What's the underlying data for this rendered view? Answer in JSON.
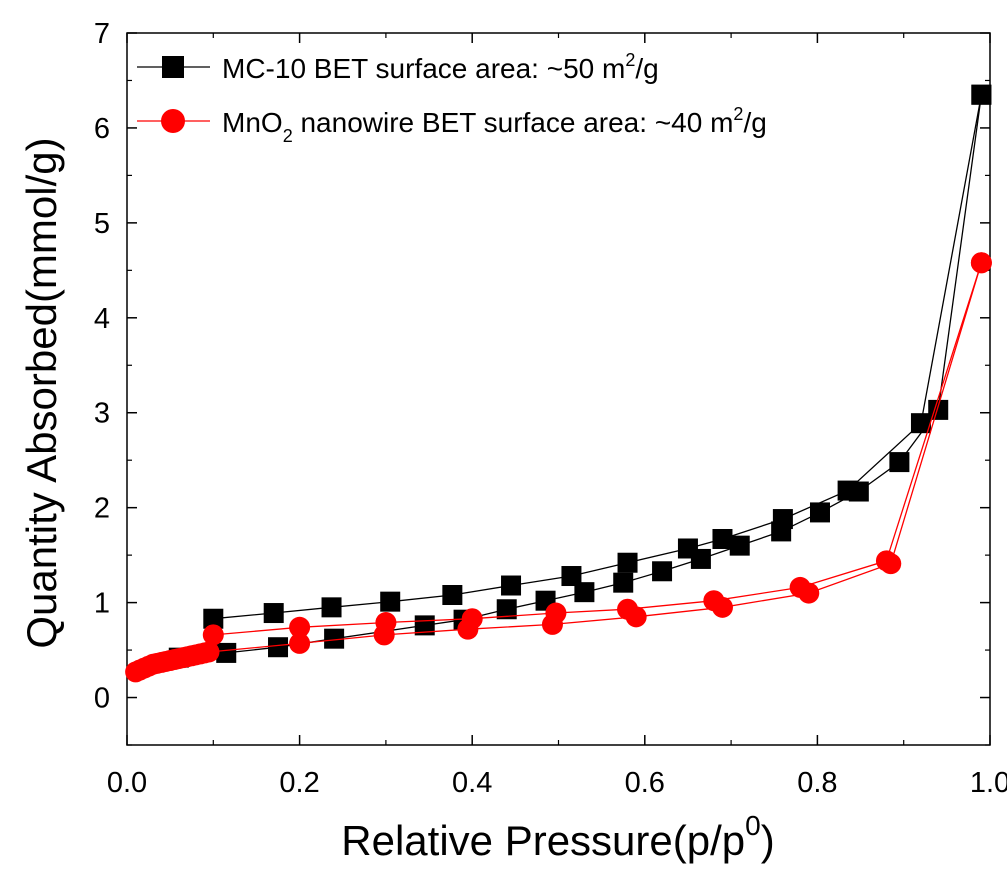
{
  "chart_data": {
    "type": "line",
    "xlabel": "Relative Pressure(p/p",
    "xlabel_sup": "0",
    "xlabel_end": ")",
    "ylabel": "Quantity Absorbed(mmol/g)",
    "xlim": [
      0.0,
      1.0
    ],
    "ylim": [
      -0.5,
      7.0
    ],
    "x_ticks": [
      "0.0",
      "0.2",
      "0.4",
      "0.6",
      "0.8",
      "1.0"
    ],
    "y_ticks": [
      "0",
      "1",
      "2",
      "3",
      "4",
      "5",
      "6",
      "7"
    ],
    "grid": false,
    "legend_position": "top-left",
    "series": [
      {
        "name": "MC-10 BET surface area: ~50 m",
        "name_sup": "2",
        "name_end": "/g",
        "color": "#000000",
        "marker": "square",
        "adsorption": [
          [
            0.06,
            0.42
          ],
          [
            0.115,
            0.47
          ],
          [
            0.175,
            0.53
          ],
          [
            0.24,
            0.62
          ],
          [
            0.345,
            0.76
          ],
          [
            0.39,
            0.82
          ],
          [
            0.44,
            0.93
          ],
          [
            0.485,
            1.02
          ],
          [
            0.53,
            1.11
          ],
          [
            0.575,
            1.21
          ],
          [
            0.62,
            1.33
          ],
          [
            0.665,
            1.46
          ],
          [
            0.71,
            1.6
          ],
          [
            0.758,
            1.75
          ],
          [
            0.803,
            1.95
          ],
          [
            0.848,
            2.17
          ],
          [
            0.895,
            2.48
          ],
          [
            0.94,
            3.03
          ],
          [
            0.99,
            6.35
          ]
        ],
        "desorption": [
          [
            0.99,
            6.35
          ],
          [
            0.92,
            2.89
          ],
          [
            0.835,
            2.18
          ],
          [
            0.76,
            1.88
          ],
          [
            0.69,
            1.67
          ],
          [
            0.65,
            1.57
          ],
          [
            0.58,
            1.42
          ],
          [
            0.515,
            1.28
          ],
          [
            0.445,
            1.18
          ],
          [
            0.377,
            1.08
          ],
          [
            0.305,
            1.01
          ],
          [
            0.237,
            0.95
          ],
          [
            0.17,
            0.89
          ],
          [
            0.1,
            0.83
          ]
        ]
      },
      {
        "name": "MnO",
        "name_sub": "2",
        "name_mid": " nanowire BET surface area: ~40 m",
        "name_sup": "2",
        "name_end": "/g",
        "color": "#ff0000",
        "marker": "circle",
        "adsorption": [
          [
            0.01,
            0.27
          ],
          [
            0.015,
            0.29
          ],
          [
            0.02,
            0.31
          ],
          [
            0.025,
            0.33
          ],
          [
            0.03,
            0.35
          ],
          [
            0.035,
            0.36
          ],
          [
            0.04,
            0.37
          ],
          [
            0.045,
            0.38
          ],
          [
            0.05,
            0.39
          ],
          [
            0.055,
            0.4
          ],
          [
            0.06,
            0.41
          ],
          [
            0.065,
            0.42
          ],
          [
            0.07,
            0.43
          ],
          [
            0.075,
            0.44
          ],
          [
            0.08,
            0.45
          ],
          [
            0.085,
            0.46
          ],
          [
            0.09,
            0.47
          ],
          [
            0.095,
            0.48
          ],
          [
            0.2,
            0.57
          ],
          [
            0.298,
            0.66
          ],
          [
            0.395,
            0.72
          ],
          [
            0.493,
            0.77
          ],
          [
            0.59,
            0.85
          ],
          [
            0.69,
            0.95
          ],
          [
            0.79,
            1.1
          ],
          [
            0.885,
            1.41
          ],
          [
            0.99,
            4.58
          ]
        ],
        "desorption": [
          [
            0.99,
            4.58
          ],
          [
            0.88,
            1.44
          ],
          [
            0.78,
            1.16
          ],
          [
            0.68,
            1.02
          ],
          [
            0.58,
            0.93
          ],
          [
            0.497,
            0.89
          ],
          [
            0.4,
            0.83
          ],
          [
            0.3,
            0.79
          ],
          [
            0.2,
            0.74
          ],
          [
            0.1,
            0.66
          ]
        ]
      }
    ]
  }
}
